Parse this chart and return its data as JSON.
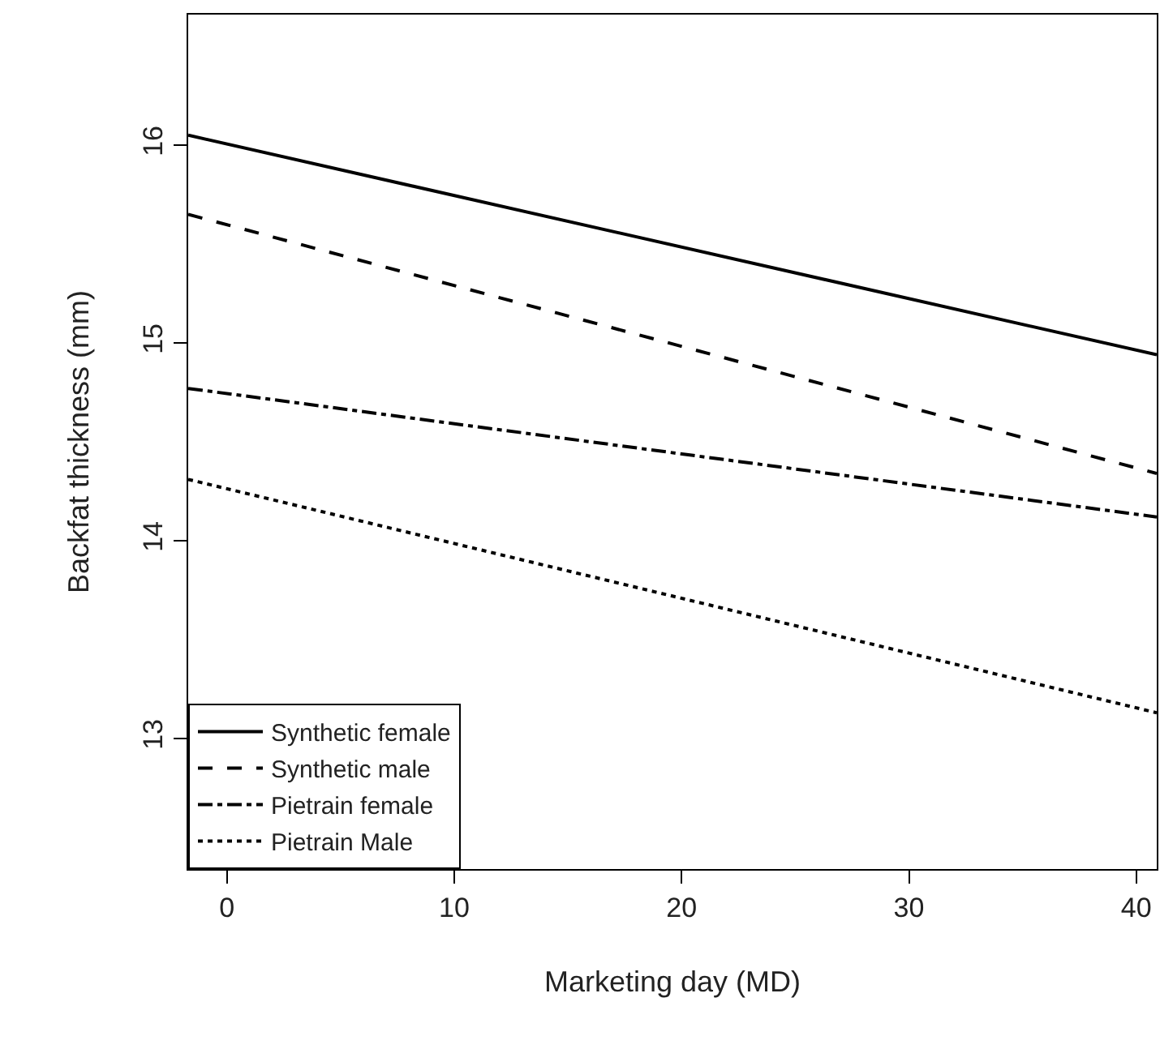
{
  "chart_data": {
    "type": "line",
    "xlabel": "Marketing day (MD)",
    "ylabel": "Backfat thickness (mm)",
    "xlim": [
      -1.7,
      40.9
    ],
    "xticks": [
      0,
      10,
      20,
      30,
      40
    ],
    "ylim": [
      12.34,
      16.66
    ],
    "yticks": [
      13,
      14,
      15,
      16
    ],
    "x": [
      -1.7,
      40.9
    ],
    "legend": "bottom left",
    "marker": "none",
    "series": [
      {
        "name": "Synthetic female",
        "color": "#000000",
        "line_style": "solid",
        "values": [
          16.05,
          14.94
        ]
      },
      {
        "name": "Synthetic male",
        "color": "#000000",
        "line_style": "dashed",
        "values": [
          15.65,
          14.34
        ]
      },
      {
        "name": "Pietrain female",
        "color": "#000000",
        "line_style": "dashdot",
        "values": [
          14.77,
          14.12
        ]
      },
      {
        "name": "Pietrain Male",
        "color": "#000000",
        "line_style": "dotted",
        "values": [
          14.31,
          13.13
        ]
      }
    ]
  }
}
